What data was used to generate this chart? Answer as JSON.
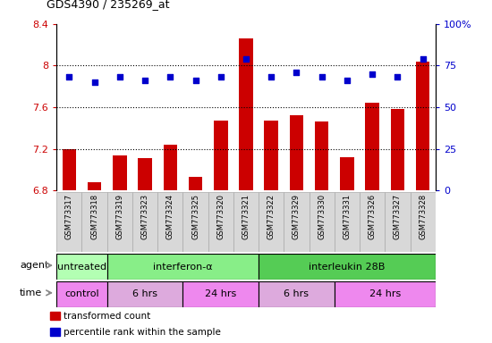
{
  "title": "GDS4390 / 235269_at",
  "samples": [
    "GSM773317",
    "GSM773318",
    "GSM773319",
    "GSM773323",
    "GSM773324",
    "GSM773325",
    "GSM773320",
    "GSM773321",
    "GSM773322",
    "GSM773329",
    "GSM773330",
    "GSM773331",
    "GSM773326",
    "GSM773327",
    "GSM773328"
  ],
  "red_values": [
    7.2,
    6.88,
    7.14,
    7.11,
    7.24,
    6.93,
    7.47,
    8.26,
    7.47,
    7.52,
    7.46,
    7.12,
    7.64,
    7.58,
    8.04
  ],
  "blue_values": [
    68,
    65,
    68,
    66,
    68,
    66,
    68,
    79,
    68,
    71,
    68,
    66,
    70,
    68,
    79
  ],
  "ylim_left": [
    6.8,
    8.4
  ],
  "ylim_right": [
    0,
    100
  ],
  "yticks_left": [
    6.8,
    7.2,
    7.6,
    8.0,
    8.4
  ],
  "yticks_right": [
    0,
    25,
    50,
    75,
    100
  ],
  "ytick_labels_left": [
    "6.8",
    "7.2",
    "7.6",
    "8",
    "8.4"
  ],
  "ytick_labels_right": [
    "0",
    "25",
    "50",
    "75",
    "100%"
  ],
  "hlines": [
    8.0,
    7.6,
    7.2
  ],
  "agent_groups": [
    {
      "label": "untreated",
      "start": 0,
      "end": 2,
      "color": "#b3ffb3"
    },
    {
      "label": "interferon-α",
      "start": 2,
      "end": 8,
      "color": "#88ee88"
    },
    {
      "label": "interleukin 28B",
      "start": 8,
      "end": 15,
      "color": "#55cc55"
    }
  ],
  "time_groups": [
    {
      "label": "control",
      "start": 0,
      "end": 2,
      "color": "#ee88ee"
    },
    {
      "label": "6 hrs",
      "start": 2,
      "end": 5,
      "color": "#ddaadd"
    },
    {
      "label": "24 hrs",
      "start": 5,
      "end": 8,
      "color": "#ee88ee"
    },
    {
      "label": "6 hrs",
      "start": 8,
      "end": 11,
      "color": "#ddaadd"
    },
    {
      "label": "24 hrs",
      "start": 11,
      "end": 15,
      "color": "#ee88ee"
    }
  ],
  "bar_color": "#cc0000",
  "dot_color": "#0000cc",
  "legend_items": [
    {
      "label": "transformed count",
      "color": "#cc0000"
    },
    {
      "label": "percentile rank within the sample",
      "color": "#0000cc"
    }
  ],
  "tick_color_left": "#cc0000",
  "tick_color_right": "#0000cc"
}
